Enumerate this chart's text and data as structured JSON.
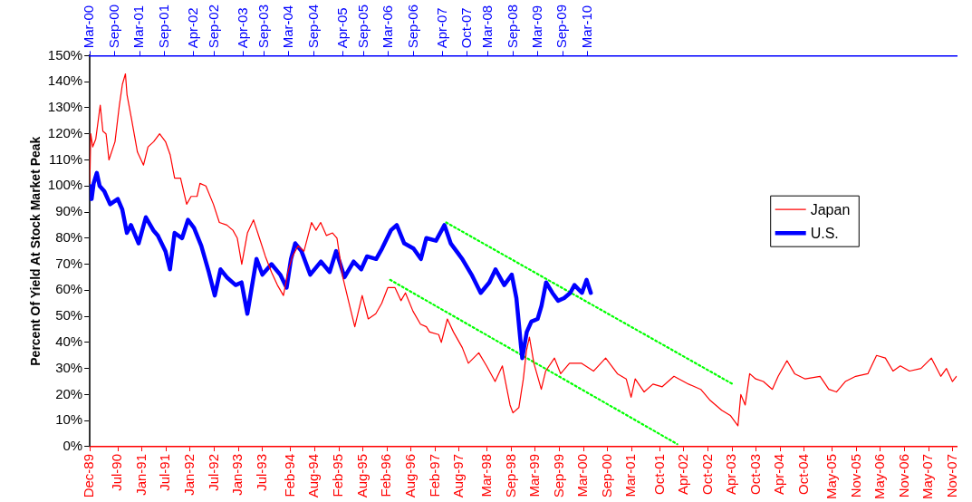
{
  "chart_data": {
    "type": "line",
    "ylabel": "Percent Of Yield At Stock Market Peak",
    "legend": "right",
    "xlim": [
      "1989-12",
      "2007-12"
    ],
    "xticks": [
      {
        "value": "1989-12",
        "label": "Dec-89"
      },
      {
        "value": "1990-07",
        "label": "Jul-90"
      },
      {
        "value": "1991-01",
        "label": "Jan-91"
      },
      {
        "value": "1991-07",
        "label": "Jul-91"
      },
      {
        "value": "1992-01",
        "label": "Jan-92"
      },
      {
        "value": "1992-07",
        "label": "Jul-92"
      },
      {
        "value": "1993-01",
        "label": "Jan-93"
      },
      {
        "value": "1993-07",
        "label": "Jul-93"
      },
      {
        "value": "1994-02",
        "label": "Feb-94"
      },
      {
        "value": "1994-08",
        "label": "Aug-94"
      },
      {
        "value": "1995-02",
        "label": "Feb-95"
      },
      {
        "value": "1995-08",
        "label": "Aug-95"
      },
      {
        "value": "1996-02",
        "label": "Feb-96"
      },
      {
        "value": "1996-08",
        "label": "Aug-96"
      },
      {
        "value": "1997-02",
        "label": "Feb-97"
      },
      {
        "value": "1997-08",
        "label": "Aug-97"
      },
      {
        "value": "1998-03",
        "label": "Mar-98"
      },
      {
        "value": "1998-09",
        "label": "Sep-98"
      },
      {
        "value": "1999-03",
        "label": "Mar-99"
      },
      {
        "value": "1999-09",
        "label": "Sep-99"
      },
      {
        "value": "2000-03",
        "label": "Mar-00"
      },
      {
        "value": "2000-09",
        "label": "Sep-00"
      },
      {
        "value": "2001-03",
        "label": "Mar-01"
      },
      {
        "value": "2001-10",
        "label": "Oct-01"
      },
      {
        "value": "2002-04",
        "label": "Apr-02"
      },
      {
        "value": "2002-10",
        "label": "Oct-02"
      },
      {
        "value": "2003-04",
        "label": "Apr-03"
      },
      {
        "value": "2003-10",
        "label": "Oct-03"
      },
      {
        "value": "2004-04",
        "label": "Apr-04"
      },
      {
        "value": "2004-10",
        "label": "Oct-04"
      },
      {
        "value": "2005-05",
        "label": "May-05"
      },
      {
        "value": "2005-11",
        "label": "Nov-05"
      },
      {
        "value": "2006-05",
        "label": "May-06"
      },
      {
        "value": "2006-11",
        "label": "Nov-06"
      },
      {
        "value": "2007-05",
        "label": "May-07"
      },
      {
        "value": "2007-11",
        "label": "Nov-07"
      }
    ],
    "x2lim": [
      "2000-03",
      "2017-08"
    ],
    "x2ticks": [
      {
        "value": "2000-03",
        "label": "Mar-00"
      },
      {
        "value": "2000-09",
        "label": "Sep-00"
      },
      {
        "value": "2001-03",
        "label": "Mar-01"
      },
      {
        "value": "2001-09",
        "label": "Sep-01"
      },
      {
        "value": "2002-04",
        "label": "Apr-02"
      },
      {
        "value": "2002-09",
        "label": "Sep-02"
      },
      {
        "value": "2003-04",
        "label": "Apr-03"
      },
      {
        "value": "2003-09",
        "label": "Sep-03"
      },
      {
        "value": "2004-03",
        "label": "Mar-04"
      },
      {
        "value": "2004-09",
        "label": "Sep-04"
      },
      {
        "value": "2005-04",
        "label": "Apr-05"
      },
      {
        "value": "2005-09",
        "label": "Sep-05"
      },
      {
        "value": "2006-03",
        "label": "Mar-06"
      },
      {
        "value": "2006-09",
        "label": "Sep-06"
      },
      {
        "value": "2007-04",
        "label": "Apr-07"
      },
      {
        "value": "2007-10",
        "label": "Oct-07"
      },
      {
        "value": "2008-03",
        "label": "Mar-08"
      },
      {
        "value": "2008-09",
        "label": "Sep-08"
      },
      {
        "value": "2009-03",
        "label": "Mar-09"
      },
      {
        "value": "2009-09",
        "label": "Sep-09"
      },
      {
        "value": "2010-03",
        "label": "Mar-10"
      }
    ],
    "ylim": [
      0,
      150
    ],
    "yticks": [
      {
        "value": 0,
        "label": "0%"
      },
      {
        "value": 10,
        "label": "10%"
      },
      {
        "value": 20,
        "label": "20%"
      },
      {
        "value": 30,
        "label": "30%"
      },
      {
        "value": 40,
        "label": "40%"
      },
      {
        "value": 50,
        "label": "50%"
      },
      {
        "value": 60,
        "label": "60%"
      },
      {
        "value": 70,
        "label": "70%"
      },
      {
        "value": 80,
        "label": "80%"
      },
      {
        "value": 90,
        "label": "90%"
      },
      {
        "value": 100,
        "label": "100%"
      },
      {
        "value": 110,
        "label": "110%"
      },
      {
        "value": 120,
        "label": "120%"
      },
      {
        "value": 130,
        "label": "130%"
      },
      {
        "value": 140,
        "label": "140%"
      },
      {
        "value": 150,
        "label": "150%"
      }
    ],
    "series": [
      {
        "name": "Japan",
        "color": "#ff0000",
        "x": [
          "1989-12-01",
          "1989-12-08",
          "1989-12-23",
          "1990-01-15",
          "1990-02-18",
          "1990-03-10",
          "1990-04-03",
          "1990-04-25",
          "1990-06-10",
          "1990-07-13",
          "1990-08-05",
          "1990-08-28",
          "1990-09-09",
          "1990-10-12",
          "1990-11-27",
          "1991-01-12",
          "1991-02-15",
          "1991-03-30",
          "1991-05-14",
          "1991-06-28",
          "1991-08-02",
          "1991-09-05",
          "1991-10-20",
          "1991-12-05",
          "1992-01-08",
          "1992-02-22",
          "1992-03-15",
          "1992-04-29",
          "1992-06-25",
          "1992-08-09",
          "1992-10-05",
          "1992-11-20",
          "1992-12-23",
          "1993-01-26",
          "1993-03-10",
          "1993-04-25",
          "1993-06-09",
          "1993-07-24",
          "1993-09-08",
          "1993-10-23",
          "1993-12-08",
          "1994-01-11",
          "1994-02-14",
          "1994-03-29",
          "1994-05-13",
          "1994-07-09",
          "1994-08-12",
          "1994-09-16",
          "1994-10-30",
          "1994-12-15",
          "1995-01-18",
          "1995-03-03",
          "1995-04-29",
          "1995-06-02",
          "1995-07-28",
          "1995-09-12",
          "1995-11-08",
          "1995-12-23",
          "1996-02-07",
          "1996-04-02",
          "1996-05-17",
          "1996-06-20",
          "1996-08-16",
          "1996-10-12",
          "1996-11-26",
          "1996-12-20",
          "1997-02-27",
          "1997-03-19",
          "1997-05-04",
          "1997-06-19",
          "1997-08-25",
          "1997-10-10",
          "1997-12-28",
          "1998-02-25",
          "1998-05-01",
          "1998-06-25",
          "1998-08-22",
          "1998-09-13",
          "1998-10-28",
          "1998-12-01",
          "1998-12-25",
          "1999-01-16",
          "1999-02-19",
          "1999-04-16",
          "1999-05-19",
          "1999-07-25",
          "1999-09-10",
          "1999-11-16",
          "2000-02-16",
          "2000-05-16",
          "2000-08-16",
          "2000-11-13",
          "2001-01-19",
          "2001-02-25",
          "2001-03-28",
          "2001-06-04",
          "2001-08-10",
          "2001-10-19",
          "2002-01-16",
          "2002-05-07",
          "2002-08-07",
          "2002-10-13",
          "2003-01-13",
          "2003-03-19",
          "2003-05-16",
          "2003-06-07",
          "2003-07-10",
          "2003-08-13",
          "2003-09-28",
          "2003-11-25",
          "2004-02-01",
          "2004-03-16",
          "2004-05-22",
          "2004-07-19",
          "2004-10-07",
          "2005-01-28",
          "2005-04-04",
          "2005-06-01",
          "2005-08-07",
          "2005-10-25",
          "2006-01-25",
          "2006-04-01",
          "2006-06-07",
          "2006-08-04",
          "2006-09-28",
          "2006-12-07",
          "2007-03-04",
          "2007-05-22",
          "2007-08-01",
          "2007-09-13",
          "2007-10-28",
          "2007-11-28"
        ],
        "values": [
          101,
          120,
          115,
          118,
          131,
          121,
          120,
          110,
          117,
          131,
          139,
          143,
          135,
          126,
          113,
          108,
          115,
          117,
          120,
          117,
          112,
          103,
          103,
          93,
          96,
          96,
          101,
          100,
          93,
          86,
          85,
          83,
          80,
          70,
          82,
          87,
          80,
          73,
          67,
          62,
          58,
          67,
          73,
          77,
          75,
          86,
          83,
          86,
          81,
          82,
          80,
          65,
          53,
          46,
          58,
          49,
          51,
          55,
          61,
          61,
          56,
          59,
          52,
          47,
          46,
          44,
          43,
          40,
          49,
          44,
          38,
          32,
          36,
          31,
          25,
          31,
          16,
          13,
          15,
          26,
          37,
          42,
          32,
          22,
          29,
          34,
          28,
          32,
          32,
          29,
          34,
          28,
          26,
          19,
          26,
          21,
          24,
          23,
          27,
          24,
          22,
          18,
          14,
          12,
          8,
          20,
          16,
          28,
          26,
          25,
          22,
          27,
          33,
          28,
          26,
          27,
          22,
          21,
          25,
          27,
          28,
          35,
          34,
          29,
          31,
          29,
          30,
          34,
          27,
          30,
          25,
          27
        ]
      },
      {
        "name": "U.S.",
        "color": "#0000ff",
        "axis": "x2",
        "x": [
          "2000-03-01",
          "2000-03-14",
          "2000-03-29",
          "2000-04-21",
          "2000-05-12",
          "2000-06-15",
          "2000-07-28",
          "2000-09-22",
          "2000-10-25",
          "2000-11-28",
          "2000-12-28",
          "2001-02-22",
          "2001-04-16",
          "2001-06-10",
          "2001-07-13",
          "2001-09-07",
          "2001-10-10",
          "2001-11-13",
          "2002-01-07",
          "2002-02-19",
          "2002-04-04",
          "2002-05-28",
          "2002-07-22",
          "2002-09-04",
          "2002-10-16",
          "2002-12-01",
          "2003-02-04",
          "2003-03-19",
          "2003-05-01",
          "2003-07-07",
          "2003-08-19",
          "2003-10-25",
          "2003-12-28",
          "2004-02-13",
          "2004-03-16",
          "2004-04-16",
          "2004-06-01",
          "2004-08-04",
          "2004-10-22",
          "2004-12-25",
          "2005-02-10",
          "2005-04-13",
          "2005-06-19",
          "2005-08-13",
          "2005-09-25",
          "2005-12-01",
          "2006-01-13",
          "2006-03-19",
          "2006-05-01",
          "2006-06-25",
          "2006-09-01",
          "2006-10-25",
          "2006-12-04",
          "2007-02-13",
          "2007-04-16",
          "2007-06-01",
          "2007-08-25",
          "2007-11-01",
          "2008-01-07",
          "2008-03-10",
          "2008-04-25",
          "2008-06-28",
          "2008-08-22",
          "2008-09-25",
          "2008-10-28",
          "2008-11-07",
          "2008-12-10",
          "2009-01-13",
          "2009-02-28",
          "2009-03-28",
          "2009-05-01",
          "2009-06-16",
          "2009-07-28",
          "2009-09-10",
          "2009-10-25",
          "2009-11-25",
          "2010-01-19",
          "2010-02-22",
          "2010-03-25"
        ],
        "values": [
          100,
          95,
          101,
          105,
          100,
          98,
          93,
          95,
          91,
          82,
          85,
          78,
          88,
          83,
          81,
          75,
          68,
          82,
          80,
          87,
          84,
          77,
          67,
          58,
          68,
          65,
          62,
          63,
          51,
          72,
          66,
          70,
          66,
          61,
          72,
          78,
          75,
          66,
          71,
          67,
          75,
          65,
          71,
          68,
          73,
          72,
          76,
          83,
          85,
          78,
          76,
          72,
          80,
          79,
          85,
          78,
          72,
          66,
          59,
          63,
          68,
          62,
          66,
          57,
          39,
          34,
          44,
          48,
          49,
          54,
          63,
          59,
          56,
          57,
          59,
          62,
          59,
          64,
          59
        ]
      },
      {
        "type": "line",
        "color": "#00ff00",
        "line_style": "dotted",
        "x": [
          "1997-04-25",
          "2003-04-07"
        ],
        "values": [
          86,
          24
        ]
      },
      {
        "type": "line",
        "color": "#00ff00",
        "line_style": "dotted",
        "x": [
          "1996-02-25",
          "2002-02-10"
        ],
        "values": [
          64,
          1
        ]
      }
    ]
  }
}
